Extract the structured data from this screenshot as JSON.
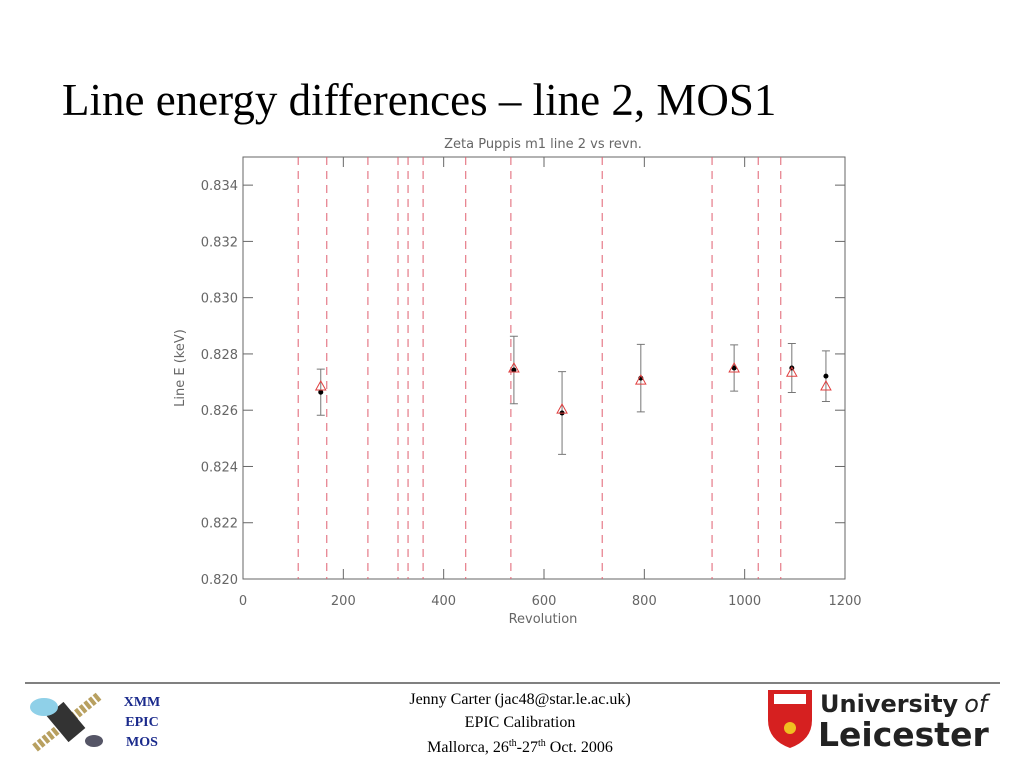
{
  "slide_title": "Line energy differences – line 2, MOS1",
  "chart_data": {
    "type": "scatter",
    "title": "Zeta Puppis m1 line 2 vs revn.",
    "xlabel": "Revolution",
    "ylabel": "Line E (keV)",
    "xlim": [
      0,
      1200
    ],
    "ylim": [
      0.82,
      0.835
    ],
    "xticks": [
      0,
      200,
      400,
      600,
      800,
      1000,
      1200
    ],
    "yticks": [
      {
        "value": 0.82,
        "label": "0.820"
      },
      0.822,
      0.824,
      0.826,
      0.828,
      {
        "value": 0.83,
        "label": "0.830"
      },
      0.832,
      0.834
    ],
    "vlines": [
      110,
      167,
      249,
      309,
      329,
      359,
      444,
      534,
      716,
      935,
      1027,
      1072
    ],
    "vline_color": "#e06070",
    "series": [
      {
        "color": "#000000",
        "marker": "dot",
        "x": [
          155,
          540,
          636,
          793,
          979,
          1094,
          1162
        ],
        "values": [
          0.82664,
          0.82743,
          0.8259,
          0.82714,
          0.8275,
          0.8275,
          0.82721
        ],
        "errors": [
          0.00082,
          0.0012,
          0.00147,
          0.0012,
          0.00082,
          0.00087,
          0.0009
        ]
      },
      {
        "color": "#e04040",
        "marker": "triangle",
        "x": [
          155,
          540,
          636,
          793,
          979,
          1094,
          1162
        ],
        "values": [
          0.82686,
          0.8275,
          0.82604,
          0.82707,
          0.8275,
          0.82735,
          0.82686
        ]
      }
    ]
  },
  "footer": {
    "logo_left": [
      "XMM",
      "EPIC",
      "MOS"
    ],
    "center": [
      "Jenny Carter (jac48@star.le.ac.uk)",
      "EPIC Calibration"
    ],
    "date": [
      "Mallorca, 26",
      "th",
      "-27",
      "th",
      " Oct. 2006"
    ],
    "logo_right": [
      "University",
      "of",
      "Leicester"
    ]
  }
}
